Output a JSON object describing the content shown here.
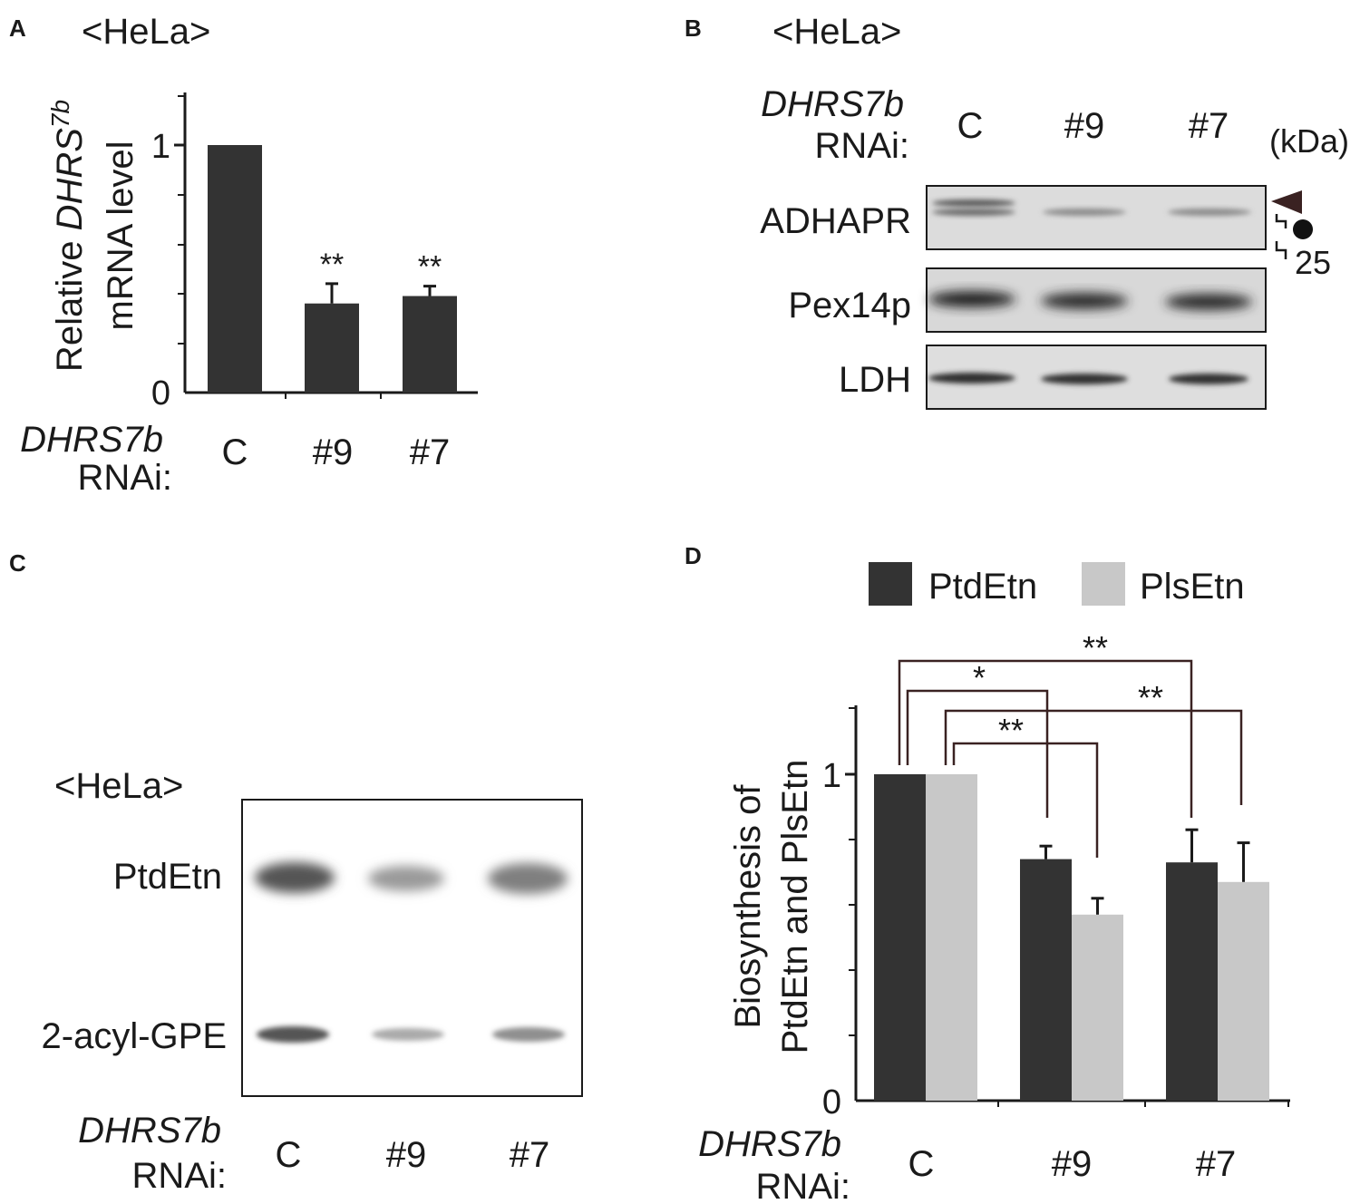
{
  "colors": {
    "dark_bar": "#333333",
    "light_bar": "#c8c8c8",
    "axis": "#1a1a1a",
    "bracket": "#3a2222",
    "arrowhead": "#3a2222"
  },
  "panel_labels": [
    "A",
    "B",
    "C",
    "D"
  ],
  "cell_line": "<HeLa>",
  "rnai_gene": "DHRS7b",
  "rnai_suffix": "RNAi:",
  "lanes": [
    "C",
    "#9",
    "#7"
  ],
  "panel_a": {
    "ylabel_line1_pre": "Relative ",
    "ylabel_line1_ital": "DHRS",
    "ylabel_line1_sup": "7b",
    "ylabel_line2": "mRNA level",
    "yticks": [
      "0",
      "1"
    ],
    "chart_data": {
      "type": "bar",
      "categories": [
        "C",
        "#9",
        "#7"
      ],
      "values": [
        1.0,
        0.36,
        0.39
      ],
      "errors": [
        0,
        0.08,
        0.04
      ],
      "significance": [
        "",
        "**",
        "**"
      ],
      "ylim": [
        0,
        1.2
      ]
    }
  },
  "panel_b": {
    "kda_label": "(kDa)",
    "marker_25": "25",
    "rows": [
      "ADHAPR",
      "Pex14p",
      "LDH"
    ]
  },
  "panel_c": {
    "rows": [
      "PtdEtn",
      "2-acyl-GPE"
    ]
  },
  "panel_d": {
    "ylabel_line1": "Biosynthesis of",
    "ylabel_line2": "PtdEtn and PlsEtn",
    "yticks": [
      "0",
      "1"
    ],
    "chart_data": {
      "type": "bar",
      "categories": [
        "C",
        "#9",
        "#7"
      ],
      "series": [
        {
          "name": "PtdEtn",
          "values": [
            1.0,
            0.74,
            0.73
          ],
          "errors": [
            0,
            0.04,
            0.1
          ]
        },
        {
          "name": "PlsEtn",
          "values": [
            1.0,
            0.57,
            0.67
          ],
          "errors": [
            0,
            0.05,
            0.12
          ]
        }
      ],
      "legend": "top",
      "ylim": [
        0,
        1.2
      ],
      "significance": [
        {
          "label": "*",
          "from": "PtdEtn C",
          "to": "PtdEtn #9"
        },
        {
          "label": "**",
          "from": "PtdEtn C",
          "to": "PtdEtn #7"
        },
        {
          "label": "**",
          "from": "PlsEtn C",
          "to": "PlsEtn #9"
        },
        {
          "label": "**",
          "from": "PlsEtn C",
          "to": "PlsEtn #7"
        }
      ]
    }
  }
}
